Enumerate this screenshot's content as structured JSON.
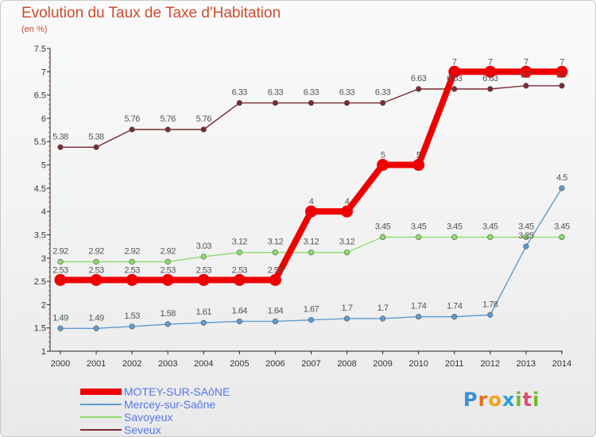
{
  "title": "Evolution du Taux de Taxe d'Habitation",
  "subtitle": "(en %)",
  "logo_text": "Proxiti",
  "chart_data": {
    "type": "line",
    "title": "Evolution du Taux de Taxe d'Habitation",
    "subtitle": "(en %)",
    "x": [
      "2000",
      "2001",
      "2002",
      "2003",
      "2004",
      "2005",
      "2006",
      "2007",
      "2008",
      "2009",
      "2010",
      "2011",
      "2012",
      "2013",
      "2014"
    ],
    "ylim": [
      1,
      7.5
    ],
    "yticks": [
      "1",
      "1.5",
      "2",
      "2.5",
      "3",
      "3.5",
      "4",
      "4.5",
      "5",
      "5.5",
      "6",
      "6.5",
      "7",
      "7.5"
    ],
    "grid": false,
    "legend_position": "bottom-left",
    "series": [
      {
        "name": "MOTEY-SUR-SAôNE",
        "color": "#ee0000",
        "values": [
          2.53,
          2.53,
          2.53,
          2.53,
          2.53,
          2.53,
          2.53,
          4,
          4,
          5,
          5,
          7,
          7,
          7,
          7
        ],
        "labels": [
          "2.53",
          "2.53",
          "2.53",
          "2.53",
          "2.53",
          "2.53",
          "2.53",
          "4",
          "4",
          "5",
          "5",
          "7",
          "7",
          "7",
          "7"
        ]
      },
      {
        "name": "Mercey-sur-Saône",
        "color": "#5e9bd0",
        "values": [
          1.49,
          1.49,
          1.53,
          1.58,
          1.61,
          1.64,
          1.64,
          1.67,
          1.7,
          1.7,
          1.74,
          1.74,
          1.78,
          3.25,
          4.5
        ],
        "labels": [
          "1.49",
          "1.49",
          "1.53",
          "1.58",
          "1.61",
          "1.64",
          "1.64",
          "1.67",
          "1.7",
          "1.7",
          "1.74",
          "1.74",
          "1.78",
          "3.25",
          "4.5"
        ]
      },
      {
        "name": "Savoyeux",
        "color": "#8edc6a",
        "values": [
          2.92,
          2.92,
          2.92,
          2.92,
          3.03,
          3.12,
          3.12,
          3.12,
          3.12,
          3.45,
          3.45,
          3.45,
          3.45,
          3.45,
          3.45
        ],
        "labels": [
          "2.92",
          "2.92",
          "2.92",
          "2.92",
          "3.03",
          "3.12",
          "3.12",
          "3.12",
          "3.12",
          "3.45",
          "3.45",
          "3.45",
          "3.45",
          "3.45",
          "3.45"
        ]
      },
      {
        "name": "Seveux",
        "color": "#7a2a33",
        "values": [
          5.38,
          5.38,
          5.76,
          5.76,
          5.76,
          6.33,
          6.33,
          6.33,
          6.33,
          6.33,
          6.63,
          6.63,
          6.63,
          6.7,
          6.7
        ],
        "labels": [
          "5.38",
          "5.38",
          "5.76",
          "5.76",
          "5.76",
          "6.33",
          "6.33",
          "6.33",
          "6.33",
          "6.33",
          "6.63",
          "6.63",
          "6.63",
          "6.7",
          "6.7"
        ]
      }
    ]
  }
}
